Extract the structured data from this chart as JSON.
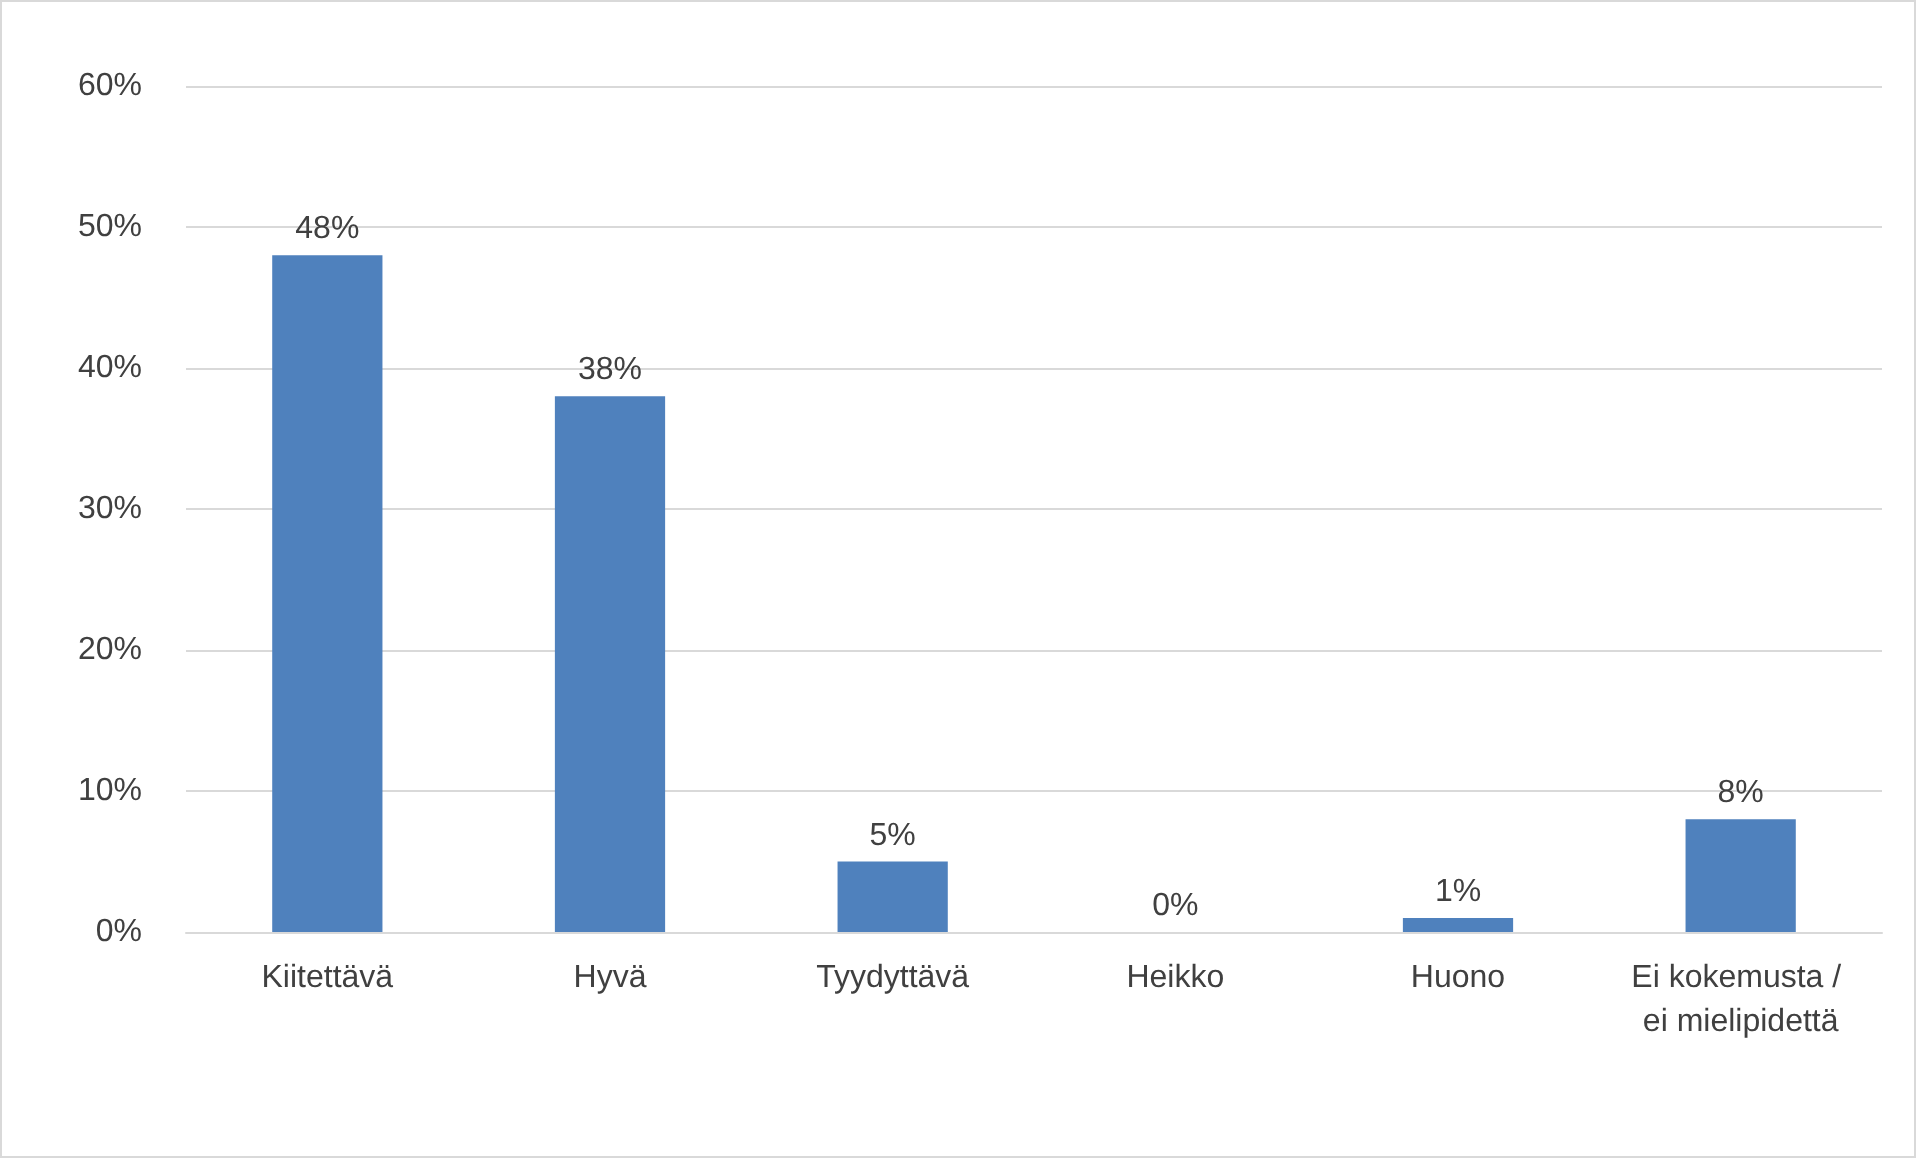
{
  "chart_data": {
    "type": "bar",
    "categories": [
      "Kiitettävä",
      "Hyvä",
      "Tyydyttävä",
      "Heikko",
      "Huono",
      "Ei kokemusta / ei mielipidettä"
    ],
    "values": [
      48,
      38,
      5,
      0,
      1,
      8
    ],
    "value_labels": [
      "48%",
      "38%",
      "5%",
      "0%",
      "1%",
      "8%"
    ],
    "color": "#4f81bd",
    "ylim": [
      0,
      60
    ],
    "yticks": [
      {
        "value": 0,
        "label": "0%"
      },
      {
        "value": 10,
        "label": "10%"
      },
      {
        "value": 20,
        "label": "20%"
      },
      {
        "value": 30,
        "label": "30%"
      },
      {
        "value": 40,
        "label": "40%"
      },
      {
        "value": 50,
        "label": "50%"
      },
      {
        "value": 60,
        "label": "60%"
      }
    ],
    "grid": "y"
  }
}
